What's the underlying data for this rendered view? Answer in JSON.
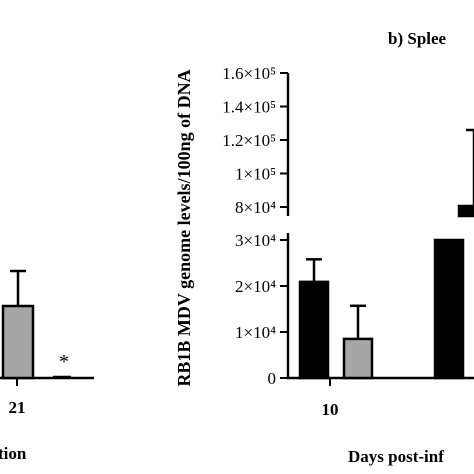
{
  "colors": {
    "series_1": "#000000",
    "series_2": "#a6a6a6",
    "axis": "#000000",
    "background": "#ffffff"
  },
  "chart_data": [
    {
      "type": "bar",
      "title": "",
      "xlabel_fragment": "tion",
      "xtick_labels": [
        "21"
      ],
      "bars": [
        {
          "category": "21",
          "series": 2,
          "value": null,
          "error_top": null
        },
        {
          "category": "21",
          "series": 3,
          "value": null,
          "error_top": null,
          "annotation": "*"
        }
      ],
      "grid": false,
      "note": ""
    },
    {
      "type": "bar",
      "title": "b) Splee",
      "xlabel": "Days post-inf",
      "ylabel": "RB1B MDV genome levels/100ng of DNA",
      "ytick_labels": [
        "0",
        "1×10⁴",
        "2×10⁴",
        "3×10⁴",
        "8×10⁴",
        "1×10⁵",
        "1.2×10⁵",
        "1.4×10⁵",
        "1.6×10⁵"
      ],
      "xtick_labels": [
        "10"
      ],
      "ylim_lower": [
        0,
        30000
      ],
      "ylim_upper": [
        80000,
        160000
      ],
      "broken_axis": true,
      "series": [
        {
          "color_key": "series_1",
          "values": [
            20900,
            30000
          ],
          "errors_upper": [
            25800,
            null
          ]
        },
        {
          "color_key": "series_2",
          "values": [
            8500,
            null
          ],
          "errors_upper": [
            15700,
            null
          ]
        }
      ],
      "categories": [
        "10",
        ""
      ],
      "grid": false
    }
  ]
}
